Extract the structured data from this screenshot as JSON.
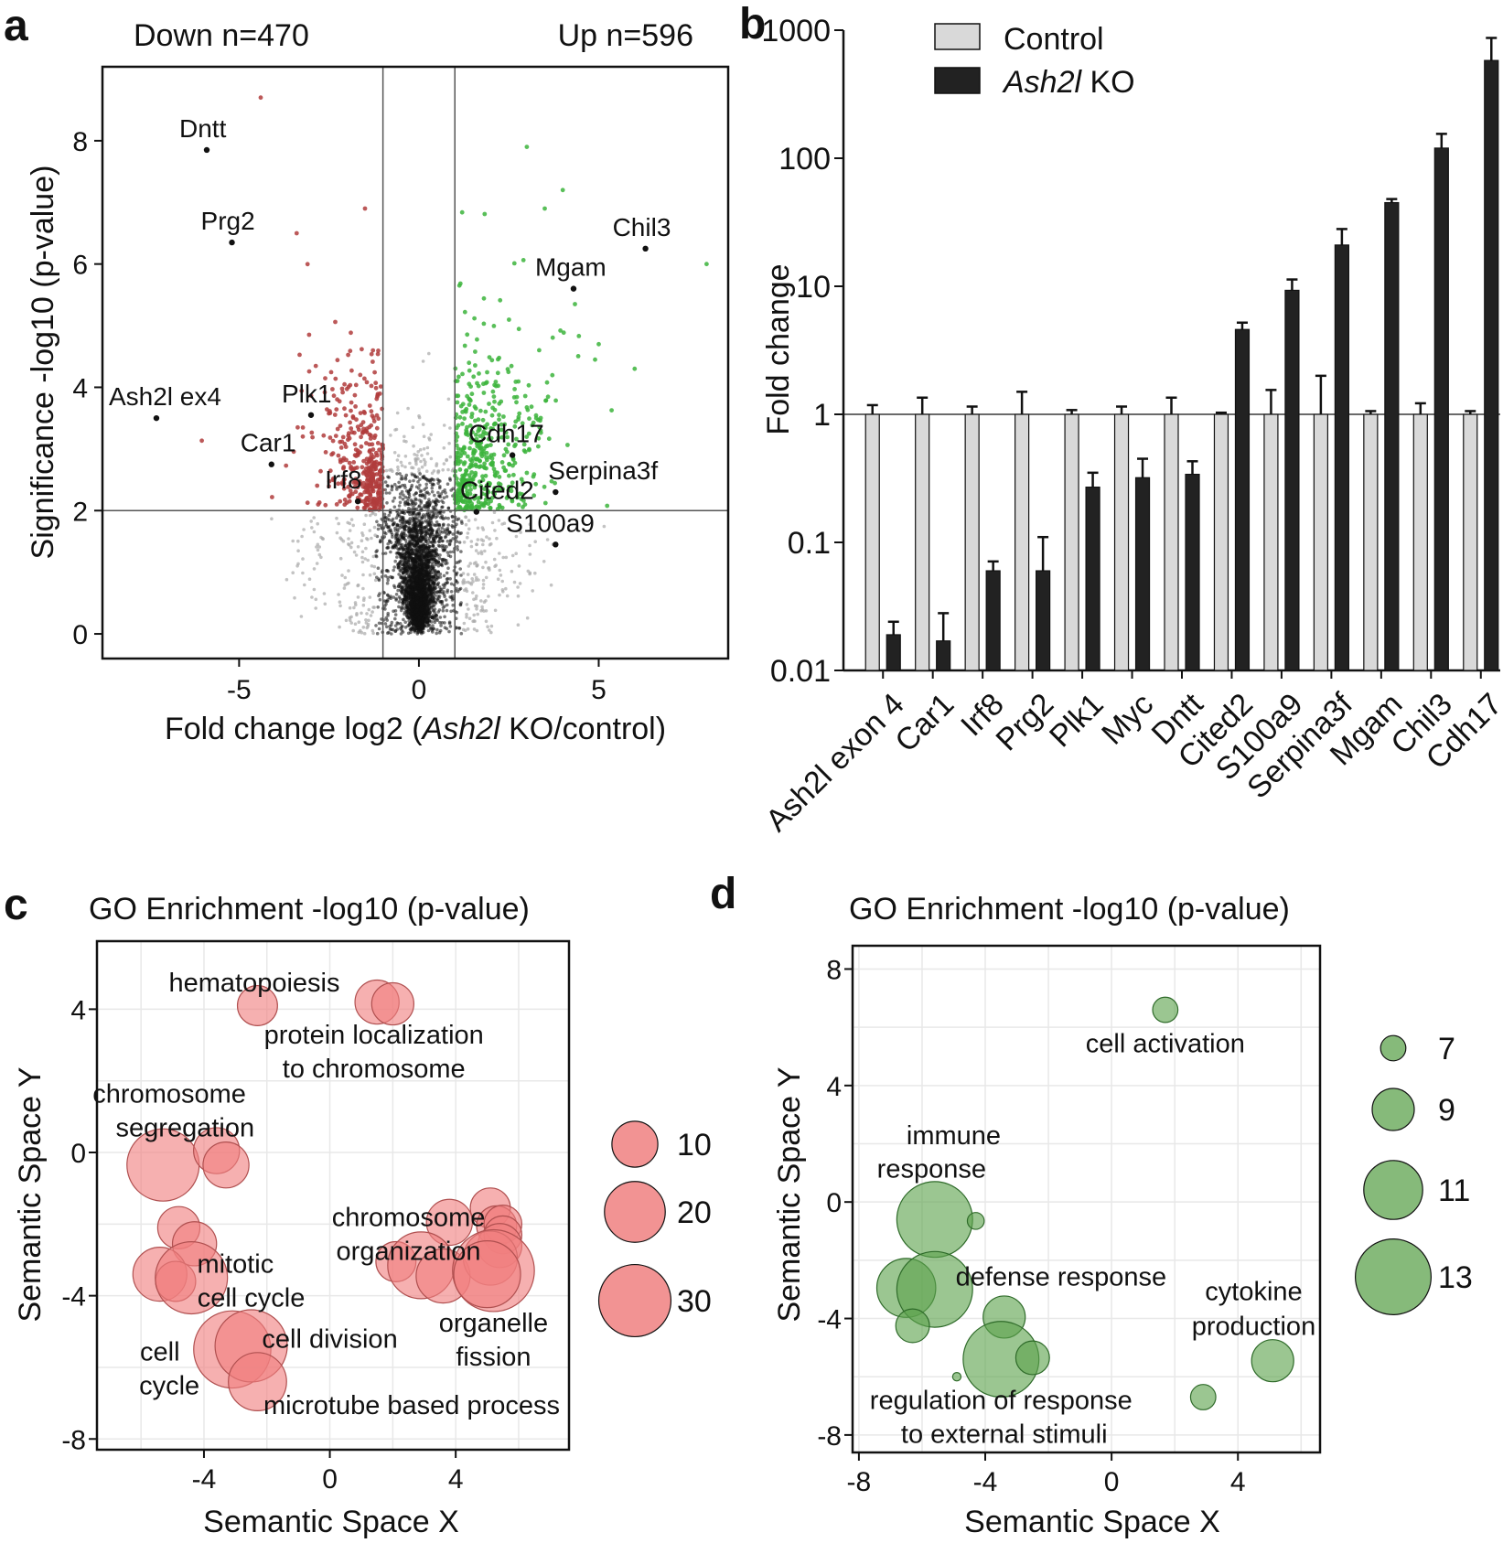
{
  "chart_data": [
    {
      "panel": "a",
      "type": "scatter",
      "header_left": "Down n=470",
      "header_right": "Up n=596",
      "xlabel_pre": "Fold change log2 (",
      "xlabel_italic": "Ash2l",
      "xlabel_post": " KO/control)",
      "ylabel": "Significance -log10 (p-value)",
      "xlim": [
        -8.8,
        8.6
      ],
      "ylim": [
        -0.4,
        9.2
      ],
      "xticks": [
        -5,
        0,
        5
      ],
      "yticks": [
        0,
        2,
        4,
        6,
        8
      ],
      "thresholds": {
        "fold": 1,
        "significance": 2
      },
      "colors": {
        "down": "#b03c3c",
        "up": "#3cb43c",
        "ns": "#111111",
        "ns_light": "#aaaaaa"
      },
      "labeled_points": [
        {
          "name": "Dntt",
          "x": -5.9,
          "y": 7.85
        },
        {
          "name": "Prg2",
          "x": -5.2,
          "y": 6.35
        },
        {
          "name": "Ash2l ex4",
          "x": -7.3,
          "y": 3.5
        },
        {
          "name": "Plk1",
          "x": -3.0,
          "y": 3.55
        },
        {
          "name": "Car1",
          "x": -4.1,
          "y": 2.75
        },
        {
          "name": "Irf8",
          "x": -1.7,
          "y": 2.15
        },
        {
          "name": "Chil3",
          "x": 6.3,
          "y": 6.25
        },
        {
          "name": "Mgam",
          "x": 4.3,
          "y": 5.6
        },
        {
          "name": "Cdh17",
          "x": 2.6,
          "y": 2.9
        },
        {
          "name": "Serpina3f",
          "x": 3.8,
          "y": 2.3
        },
        {
          "name": "Cited2",
          "x": 1.6,
          "y": 1.98
        },
        {
          "name": "S100a9",
          "x": 3.8,
          "y": 1.45
        }
      ],
      "notable_points": [
        {
          "x": -4.4,
          "y": 8.7
        },
        {
          "x": -1.5,
          "y": 6.9
        },
        {
          "x": -3.4,
          "y": 6.5
        },
        {
          "x": 3.0,
          "y": 7.9
        },
        {
          "x": 4.0,
          "y": 7.2
        },
        {
          "x": 3.5,
          "y": 6.9
        },
        {
          "x": 8.0,
          "y": 6.0
        },
        {
          "x": 6.0,
          "y": 4.3
        },
        {
          "x": 5.0,
          "y": 4.7
        }
      ]
    },
    {
      "panel": "b",
      "type": "bar",
      "ylabel": "Fold change",
      "yscale": "log",
      "ylim": [
        0.01,
        1000
      ],
      "yticks": [
        0.01,
        0.1,
        1,
        10,
        100,
        1000
      ],
      "yticklabels": [
        "0.01",
        "0.1",
        "1",
        "10",
        "100",
        "1000"
      ],
      "categories": [
        "Ash2l exon 4",
        "Car1",
        "Irf8",
        "Prg2",
        "Plk1",
        "Myc",
        "Dntt",
        "Cited2",
        "S100a9",
        "Serpina3f",
        "Mgam",
        "Chil3",
        "Cdh17"
      ],
      "legend": [
        {
          "label": "Control",
          "italic": false
        },
        {
          "label": "Ash2l",
          "italic": true,
          "suffix": " KO"
        }
      ],
      "series": [
        {
          "name": "Control",
          "color": "#d9d9d9",
          "values": [
            1,
            1,
            1,
            1,
            1,
            1,
            1,
            1,
            1,
            1,
            1,
            1,
            1
          ],
          "errors": [
            1.18,
            1.35,
            1.15,
            1.5,
            1.08,
            1.15,
            1.35,
            1.03,
            1.55,
            2.0,
            1.06,
            1.22,
            1.06
          ]
        },
        {
          "name": "Ash2l KO",
          "color": "#222222",
          "values": [
            0.019,
            0.017,
            0.06,
            0.06,
            0.27,
            0.32,
            0.34,
            4.6,
            9.3,
            21,
            45,
            120,
            580
          ],
          "errors": [
            0.024,
            0.028,
            0.071,
            0.11,
            0.35,
            0.45,
            0.43,
            5.2,
            11.3,
            28,
            48,
            155,
            870
          ]
        }
      ]
    },
    {
      "panel": "c",
      "type": "scatter",
      "title": "GO Enrichment -log10 (p-value)",
      "xlabel": "Semantic Space X",
      "ylabel": "Semantic Space Y",
      "xlim": [
        -7.4,
        7.6
      ],
      "ylim": [
        -8.3,
        5.9
      ],
      "xticks": [
        -4,
        0,
        4
      ],
      "yticks": [
        -8,
        -4,
        0,
        4
      ],
      "color": "#f08080",
      "size_legend": [
        10,
        20,
        30
      ],
      "labels": [
        {
          "text": "hematopoiesis",
          "x": -2.4,
          "y": 4.75
        },
        {
          "text": "protein localization",
          "x": 1.4,
          "y": 3.3
        },
        {
          "text": "to chromosome",
          "x": 1.4,
          "y": 2.35
        },
        {
          "text": "chromosome",
          "x": -5.1,
          "y": 1.65
        },
        {
          "text": "segregation",
          "x": -4.6,
          "y": 0.7
        },
        {
          "text": "chromosome",
          "x": 2.5,
          "y": -1.8
        },
        {
          "text": "organization",
          "x": 2.5,
          "y": -2.75
        },
        {
          "text": "mitotic",
          "x": -3.0,
          "y": -3.1
        },
        {
          "text": "cell cycle",
          "x": -2.5,
          "y": -4.05
        },
        {
          "text": "organelle",
          "x": 5.2,
          "y": -4.75
        },
        {
          "text": "fission",
          "x": 5.2,
          "y": -5.7
        },
        {
          "text": "cell division",
          "x": 0.0,
          "y": -5.2
        },
        {
          "text": "cell",
          "x": -5.4,
          "y": -5.55
        },
        {
          "text": "cycle",
          "x": -5.1,
          "y": -6.5
        },
        {
          "text": "microtube based process",
          "x": 2.6,
          "y": -7.05
        }
      ],
      "points": [
        {
          "x": -2.3,
          "y": 4.1,
          "v": 7
        },
        {
          "x": 1.5,
          "y": 4.2,
          "v": 9
        },
        {
          "x": 2.0,
          "y": 4.15,
          "v": 8
        },
        {
          "x": -5.3,
          "y": -0.35,
          "v": 30
        },
        {
          "x": -3.6,
          "y": 0.05,
          "v": 10
        },
        {
          "x": -3.3,
          "y": -0.35,
          "v": 10
        },
        {
          "x": -4.8,
          "y": -2.1,
          "v": 8
        },
        {
          "x": -4.3,
          "y": -2.55,
          "v": 9
        },
        {
          "x": -5.4,
          "y": -3.4,
          "v": 15
        },
        {
          "x": -4.9,
          "y": -3.6,
          "v": 7
        },
        {
          "x": -4.4,
          "y": -3.5,
          "v": 30
        },
        {
          "x": -3.1,
          "y": -5.5,
          "v": 35
        },
        {
          "x": -2.5,
          "y": -5.4,
          "v": 30
        },
        {
          "x": -2.3,
          "y": -6.4,
          "v": 18
        },
        {
          "x": 3.8,
          "y": -1.95,
          "v": 10
        },
        {
          "x": 5.1,
          "y": -1.55,
          "v": 7
        },
        {
          "x": 5.3,
          "y": -2.05,
          "v": 7
        },
        {
          "x": 5.5,
          "y": -2.0,
          "v": 6
        },
        {
          "x": 5.5,
          "y": -2.3,
          "v": 6
        },
        {
          "x": 5.4,
          "y": -2.6,
          "v": 9
        },
        {
          "x": 2.1,
          "y": -3.05,
          "v": 7
        },
        {
          "x": 2.9,
          "y": -3.15,
          "v": 25
        },
        {
          "x": 3.6,
          "y": -3.45,
          "v": 15
        },
        {
          "x": 5.1,
          "y": -2.95,
          "v": 15
        },
        {
          "x": 5.2,
          "y": -3.3,
          "v": 40
        },
        {
          "x": 5.0,
          "y": -3.4,
          "v": 25
        }
      ]
    },
    {
      "panel": "d",
      "type": "scatter",
      "title": "GO Enrichment -log10 (p-value)",
      "xlabel": "Semantic Space X",
      "ylabel": "Semantic Space Y",
      "xlim": [
        -8.2,
        6.6
      ],
      "ylim": [
        -8.6,
        8.8
      ],
      "xticks": [
        -8,
        -4,
        0,
        4
      ],
      "yticks": [
        -8,
        -4,
        0,
        4,
        8
      ],
      "color": "#5da34e",
      "size_legend": [
        7,
        9,
        11,
        13
      ],
      "labels": [
        {
          "text": "cell activation",
          "x": 1.7,
          "y": 5.45
        },
        {
          "text": "immune",
          "x": -5.0,
          "y": 2.3
        },
        {
          "text": "response",
          "x": -5.7,
          "y": 1.15
        },
        {
          "text": "defense response",
          "x": -1.6,
          "y": -2.55
        },
        {
          "text": "cytokine",
          "x": 4.5,
          "y": -3.05
        },
        {
          "text": "production",
          "x": 4.5,
          "y": -4.25
        },
        {
          "text": "regulation of response",
          "x": -3.5,
          "y": -6.8
        },
        {
          "text": "to external stimuli",
          "x": -3.4,
          "y": -7.95
        }
      ],
      "points": [
        {
          "x": 1.7,
          "y": 6.6,
          "v": 7
        },
        {
          "x": -5.6,
          "y": -0.6,
          "v": 13
        },
        {
          "x": -4.3,
          "y": -0.65,
          "v": 6
        },
        {
          "x": -6.5,
          "y": -2.95,
          "v": 11
        },
        {
          "x": -5.6,
          "y": -3.0,
          "v": 13
        },
        {
          "x": -6.3,
          "y": -4.25,
          "v": 8
        },
        {
          "x": -3.4,
          "y": -3.95,
          "v": 9
        },
        {
          "x": -3.5,
          "y": -5.4,
          "v": 13
        },
        {
          "x": -2.5,
          "y": -5.35,
          "v": 8
        },
        {
          "x": -4.9,
          "y": -6.0,
          "v": 5
        },
        {
          "x": 2.9,
          "y": -6.7,
          "v": 7
        },
        {
          "x": 5.1,
          "y": -5.45,
          "v": 9
        }
      ]
    }
  ],
  "panel_labels": [
    "a",
    "b",
    "c",
    "d"
  ]
}
